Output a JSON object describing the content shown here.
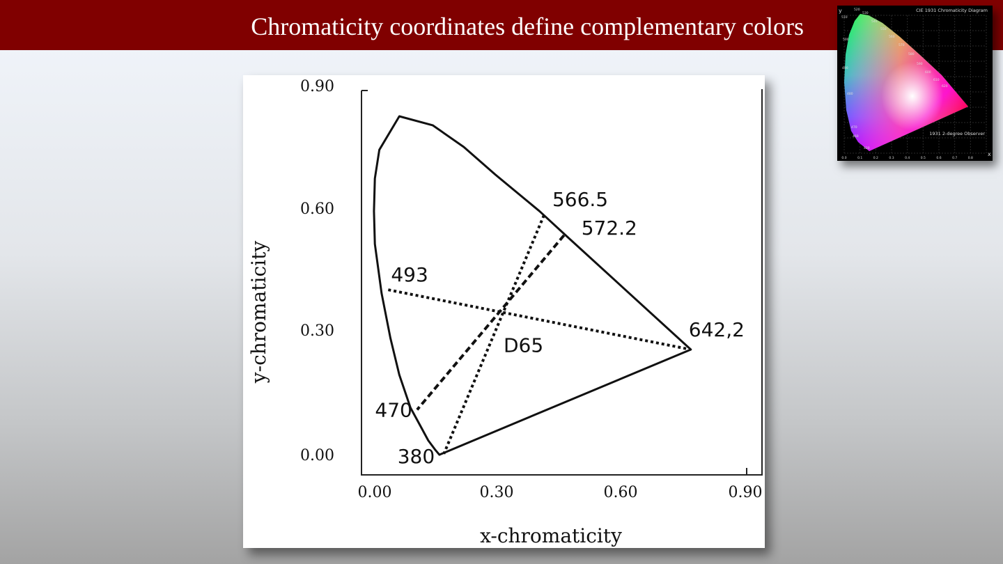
{
  "slide": {
    "title": "Chromaticity coordinates define complementary colors"
  },
  "chart_data": {
    "type": "scatter",
    "xlabel": "x-chromaticity",
    "ylabel": "y-chromaticity",
    "xlim": [
      0.0,
      0.9
    ],
    "ylim": [
      0.0,
      0.9
    ],
    "x_ticks": [
      "0.00",
      "0.30",
      "0.60",
      "0.90"
    ],
    "y_ticks": [
      "0.00",
      "0.30",
      "0.60",
      "0.90"
    ],
    "grid": false,
    "spectral_locus": [
      {
        "x": 0.175,
        "y": 0.005
      },
      {
        "x": 0.165,
        "y": 0.018
      },
      {
        "x": 0.15,
        "y": 0.04
      },
      {
        "x": 0.13,
        "y": 0.08
      },
      {
        "x": 0.11,
        "y": 0.12
      },
      {
        "x": 0.085,
        "y": 0.2
      },
      {
        "x": 0.065,
        "y": 0.29
      },
      {
        "x": 0.045,
        "y": 0.4
      },
      {
        "x": 0.03,
        "y": 0.52
      },
      {
        "x": 0.028,
        "y": 0.6
      },
      {
        "x": 0.03,
        "y": 0.68
      },
      {
        "x": 0.04,
        "y": 0.75
      },
      {
        "x": 0.085,
        "y": 0.832
      },
      {
        "x": 0.16,
        "y": 0.81
      },
      {
        "x": 0.23,
        "y": 0.757
      },
      {
        "x": 0.3,
        "y": 0.69
      },
      {
        "x": 0.4,
        "y": 0.6
      },
      {
        "x": 0.46,
        "y": 0.54
      },
      {
        "x": 0.74,
        "y": 0.262
      }
    ],
    "complementary_lines": [
      {
        "style": "dotted",
        "from": {
          "x": 0.41,
          "y": 0.59
        },
        "to": {
          "x": 0.185,
          "y": 0.007
        }
      },
      {
        "style": "dashed",
        "from": {
          "x": 0.455,
          "y": 0.541
        },
        "to": {
          "x": 0.125,
          "y": 0.115
        }
      },
      {
        "style": "dotted",
        "from": {
          "x": 0.06,
          "y": 0.408
        },
        "to": {
          "x": 0.74,
          "y": 0.262
        }
      }
    ],
    "points": [
      {
        "label": "566.5",
        "x": 0.41,
        "y": 0.59
      },
      {
        "label": "572.2",
        "x": 0.455,
        "y": 0.541
      },
      {
        "label": "493",
        "x": 0.06,
        "y": 0.408
      },
      {
        "label": "642,2",
        "x": 0.74,
        "y": 0.262
      },
      {
        "label": "470",
        "x": 0.125,
        "y": 0.115
      },
      {
        "label": "380",
        "x": 0.185,
        "y": 0.007
      },
      {
        "label": "D65",
        "x": 0.313,
        "y": 0.329
      }
    ]
  },
  "inset": {
    "title": "CIE 1931 Chromaticity Diagram",
    "observer": "1931 2-degree Observer",
    "x_axis": "x",
    "y_axis": "y",
    "wavelength_labels": [
      "520",
      "530",
      "510",
      "540",
      "550",
      "560",
      "570",
      "580",
      "500",
      "590",
      "600",
      "610",
      "620",
      "490",
      "480",
      "470",
      "460",
      "420"
    ],
    "tick_labels": [
      "0.0",
      "0.1",
      "0.2",
      "0.3",
      "0.4",
      "0.5",
      "0.6",
      "0.7",
      "0.8"
    ]
  }
}
